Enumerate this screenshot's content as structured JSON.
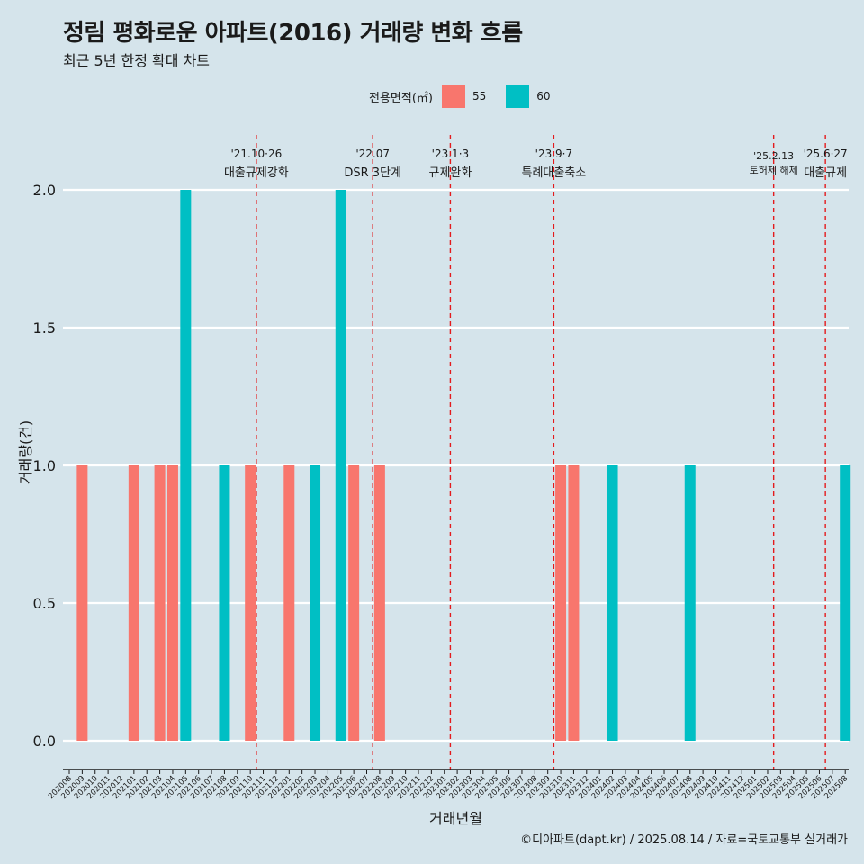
{
  "title": "정림 평화로운 아파트(2016) 거래량 변화 흐름",
  "subtitle": "최근 5년 한정 확대 차트",
  "caption": "©디아파트(dapt.kr) / 2025.08.14 / 자료=국토교통부 실거래가",
  "legend": {
    "title": "전용면적(㎡)",
    "items": [
      {
        "label": "55",
        "color": "#f8766d"
      },
      {
        "label": "60",
        "color": "#00bfc4"
      }
    ]
  },
  "chart_data": {
    "type": "bar",
    "xlabel": "거래년월",
    "ylabel": "거래량(건)",
    "ylim": [
      0,
      2
    ],
    "yticks": [
      "0.0",
      "0.5",
      "1.0",
      "1.5",
      "2.0"
    ],
    "grid": true,
    "legend_position": "top",
    "categories": [
      "202008",
      "202009",
      "202010",
      "202011",
      "202012",
      "202101",
      "202102",
      "202103",
      "202104",
      "202105",
      "202106",
      "202107",
      "202108",
      "202109",
      "202110",
      "202111",
      "202112",
      "202201",
      "202202",
      "202203",
      "202204",
      "202205",
      "202206",
      "202207",
      "202208",
      "202209",
      "202210",
      "202211",
      "202212",
      "202301",
      "202302",
      "202303",
      "202304",
      "202305",
      "202306",
      "202307",
      "202308",
      "202309",
      "202310",
      "202311",
      "202312",
      "202401",
      "202402",
      "202403",
      "202404",
      "202405",
      "202406",
      "202407",
      "202408",
      "202409",
      "202410",
      "202411",
      "202412",
      "202501",
      "202502",
      "202503",
      "202504",
      "202505",
      "202506",
      "202507",
      "202508"
    ],
    "bars": [
      {
        "category": "202009",
        "series": "55",
        "value": 1
      },
      {
        "category": "202101",
        "series": "55",
        "value": 1
      },
      {
        "category": "202103",
        "series": "55",
        "value": 1
      },
      {
        "category": "202104",
        "series": "55",
        "value": 1
      },
      {
        "category": "202105",
        "series": "60",
        "value": 2
      },
      {
        "category": "202108",
        "series": "60",
        "value": 1
      },
      {
        "category": "202110",
        "series": "55",
        "value": 1
      },
      {
        "category": "202201",
        "series": "55",
        "value": 1
      },
      {
        "category": "202203",
        "series": "60",
        "value": 1
      },
      {
        "category": "202205",
        "series": "60",
        "value": 2
      },
      {
        "category": "202206",
        "series": "55",
        "value": 1
      },
      {
        "category": "202208",
        "series": "55",
        "value": 1
      },
      {
        "category": "202310",
        "series": "55",
        "value": 1
      },
      {
        "category": "202311",
        "series": "55",
        "value": 1
      },
      {
        "category": "202402",
        "series": "60",
        "value": 1
      },
      {
        "category": "202408",
        "series": "60",
        "value": 1
      },
      {
        "category": "202508",
        "series": "60",
        "value": 1
      }
    ],
    "annotations": [
      {
        "category": "202110",
        "date": "'21.10·26",
        "text": "대출규제강화",
        "color": "#e41a1c"
      },
      {
        "category": "202207",
        "date": "'22.07",
        "text": "DSR 3단계",
        "color": "#e41a1c"
      },
      {
        "category": "202301",
        "date": "'23.1·3",
        "text": "규제완화",
        "color": "#e41a1c"
      },
      {
        "category": "202309",
        "date": "'23.9·7",
        "text": "특례대출축소",
        "color": "#e41a1c"
      },
      {
        "category": "202502",
        "date": "'25.2.13",
        "text": "토허제 해제",
        "color": "#e41a1c"
      },
      {
        "category": "202506",
        "date": "'25.6·27",
        "text": "대출규제",
        "color": "#e41a1c"
      }
    ]
  }
}
